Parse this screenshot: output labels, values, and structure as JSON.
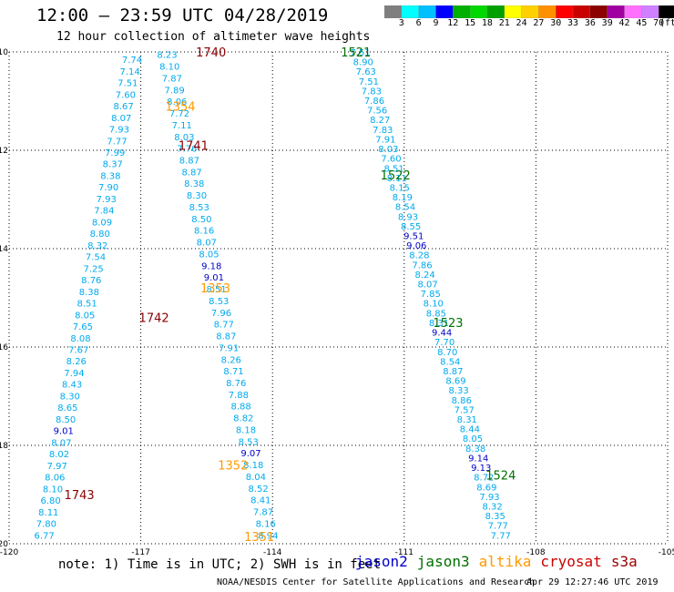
{
  "header": {
    "title": "12:00 — 23:59 UTC 04/28/2019",
    "subtitle": "12 hour collection of altimeter wave heights"
  },
  "colorbar": {
    "colors": [
      "#7f7f7f",
      "#00ffff",
      "#00c0ff",
      "#0000ff",
      "#00b000",
      "#00d800",
      "#00a000",
      "#ffff00",
      "#ffd000",
      "#ff9000",
      "#ff0000",
      "#c80000",
      "#8c0000",
      "#a000a0",
      "#ff70ff",
      "#d080ff",
      "#000000"
    ],
    "labels": [
      "3",
      "6",
      "9",
      "12",
      "15",
      "18",
      "21",
      "24",
      "27",
      "30",
      "33",
      "36",
      "39",
      "42",
      "45",
      "70"
    ],
    "unit": "(ft)"
  },
  "legend": [
    {
      "label": "jason2",
      "color": "#0000cc"
    },
    {
      "label": "jason3",
      "color": "#007000"
    },
    {
      "label": "altika",
      "color": "#ff9900"
    },
    {
      "label": "cryosat",
      "color": "#cc0000"
    },
    {
      "label": "s3a",
      "color": "#990000"
    }
  ],
  "note": "note: 1) Time is in UTC; 2) SWH is in feet",
  "footer": {
    "left": "NOAA/NESDIS Center for Satellite Applications and Research",
    "right": "Apr 29 12:27:46 UTC 2019"
  },
  "chart_data": {
    "type": "scatter",
    "xlabel": "",
    "ylabel": "",
    "xlim": [
      -120,
      -105
    ],
    "ylim": [
      20,
      10
    ],
    "x_ticks": [
      "-120",
      "-117",
      "-114",
      "-111",
      "-108",
      "-105"
    ],
    "y_ticks": [
      "10",
      "12",
      "14",
      "16",
      "18",
      "20"
    ],
    "grid": true,
    "colors": {
      "default": "#00aaee",
      "high": "#0000cc",
      "jason3": "#007000",
      "altika": "#ff9900",
      "s3a": "#8b0000"
    },
    "tracks": [
      {
        "name": "altika track",
        "x_start": -116.4,
        "x_end": -114.1,
        "y_start": 10.05,
        "y_end": 19.82,
        "values": [
          "8.23",
          "8.10",
          "7.87",
          "7.89",
          "8.06",
          "7.72",
          "7.11",
          "8.03",
          "7.76",
          "8.87",
          "8.87",
          "8.38",
          "8.30",
          "8.53",
          "8.50",
          "8.16",
          "8.07",
          "8.05",
          "9.18",
          "9.01",
          "8.51",
          "8.53",
          "7.96",
          "8.77",
          "8.87",
          "7.91",
          "8.26",
          "8.71",
          "8.76",
          "7.88",
          "8.88",
          "8.82",
          "8.18",
          "8.53",
          "9.07",
          "8.18",
          "8.04",
          "8.52",
          "8.41",
          "7.87",
          "8.16",
          "8.94"
        ]
      },
      {
        "name": "s3a track",
        "x_start": -117.2,
        "x_end": -119.2,
        "y_start": 10.15,
        "y_end": 19.82,
        "values": [
          "7.74",
          "7.14",
          "7.51",
          "7.60",
          "8.67",
          "8.07",
          "7.93",
          "7.77",
          "7.99",
          "8.37",
          "8.38",
          "7.90",
          "7.93",
          "7.84",
          "8.09",
          "8.80",
          "8.32",
          "7.54",
          "7.25",
          "8.76",
          "8.38",
          "8.51",
          "8.05",
          "7.65",
          "8.08",
          "7.67",
          "8.26",
          "7.94",
          "8.43",
          "8.30",
          "8.65",
          "8.50",
          "9.01",
          "8.07",
          "8.02",
          "7.97",
          "8.06",
          "8.10",
          "6.80",
          "8.11",
          "7.80",
          "6.77"
        ]
      },
      {
        "name": "jason3 track",
        "x_start": -112.0,
        "x_end": -108.8,
        "y_start": 10.0,
        "y_end": 19.82,
        "values": [
          "7.51",
          "8.90",
          "7.63",
          "7.51",
          "7.83",
          "7.86",
          "7.56",
          "8.27",
          "7.83",
          "7.91",
          "8.03",
          "7.60",
          "8.51",
          "8.11",
          "8.15",
          "8.19",
          "8.54",
          "8.93",
          "8.55",
          "9.51",
          "9.06",
          "8.28",
          "7.86",
          "8.24",
          "8.07",
          "7.85",
          "8.10",
          "8.85",
          "8.31",
          "9.44",
          "7.70",
          "8.70",
          "8.54",
          "8.87",
          "8.69",
          "8.33",
          "8.86",
          "7.57",
          "8.31",
          "8.44",
          "8.05",
          "8.38",
          "9.14",
          "9.13",
          "8.72",
          "8.69",
          "7.93",
          "8.32",
          "8.35",
          "7.77",
          "7.77"
        ]
      }
    ],
    "labels": [
      {
        "text": "1740",
        "x": -115.4,
        "y": 10.0,
        "color": "s3a"
      },
      {
        "text": "1354",
        "x": -116.1,
        "y": 11.1,
        "color": "altika"
      },
      {
        "text": "1741",
        "x": -115.8,
        "y": 11.9,
        "color": "s3a"
      },
      {
        "text": "1353",
        "x": -115.3,
        "y": 14.8,
        "color": "altika"
      },
      {
        "text": "1742",
        "x": -116.7,
        "y": 15.4,
        "color": "s3a"
      },
      {
        "text": "1352",
        "x": -114.9,
        "y": 18.4,
        "color": "altika"
      },
      {
        "text": "1743",
        "x": -118.4,
        "y": 19.0,
        "color": "s3a"
      },
      {
        "text": "1351",
        "x": -114.3,
        "y": 19.85,
        "color": "altika"
      },
      {
        "text": "1521",
        "x": -112.1,
        "y": 10.0,
        "color": "jason3"
      },
      {
        "text": "1522",
        "x": -111.2,
        "y": 12.5,
        "color": "jason3"
      },
      {
        "text": "1523",
        "x": -110.0,
        "y": 15.5,
        "color": "jason3"
      },
      {
        "text": "1524",
        "x": -108.8,
        "y": 18.6,
        "color": "jason3"
      }
    ]
  }
}
